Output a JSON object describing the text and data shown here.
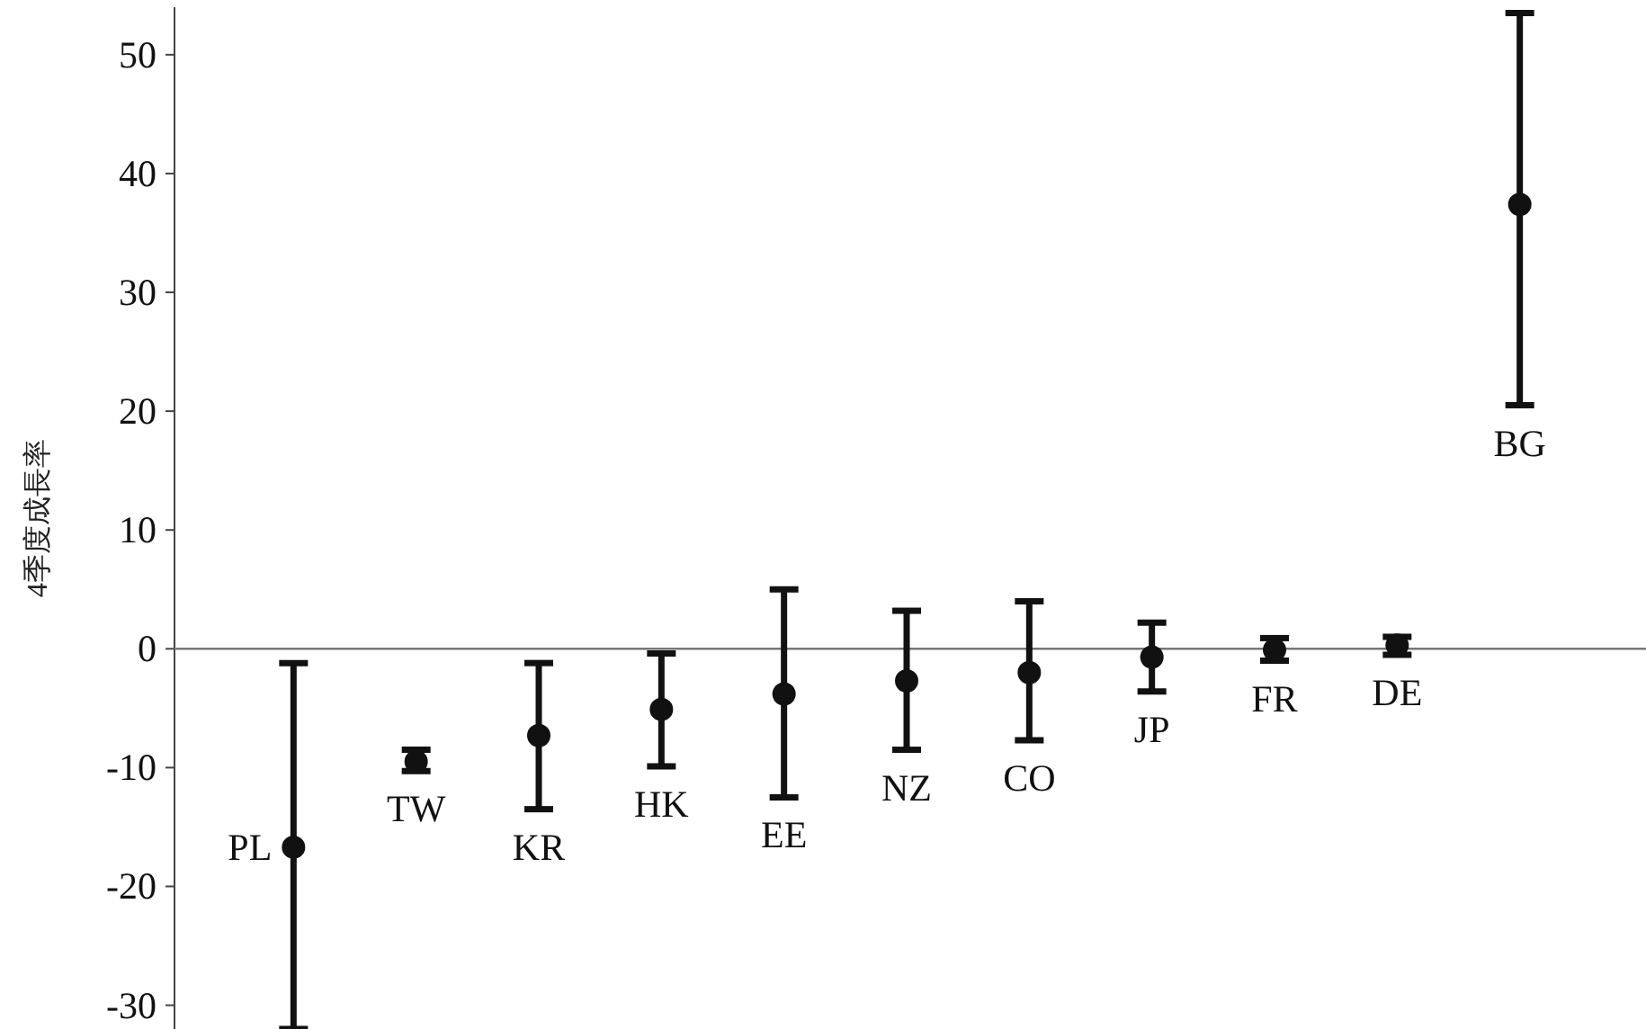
{
  "chart_data": {
    "type": "scatter",
    "ylabel": "4季度成長率",
    "categories": [
      "PL",
      "TW",
      "KR",
      "HK",
      "EE",
      "NZ",
      "CO",
      "JP",
      "FR",
      "DE",
      "BG"
    ],
    "series": [
      {
        "color": "#111111",
        "values": [
          -16.7,
          -9.5,
          -7.3,
          -5.1,
          -3.8,
          -2.7,
          -2.0,
          -0.7,
          -0.1,
          0.3,
          37.4
        ],
        "errors": [
          [
            -32,
            -1.2
          ],
          [
            -10.3,
            -8.5
          ],
          [
            -13.5,
            -1.2
          ],
          [
            -9.9,
            -0.4
          ],
          [
            -12.5,
            5.0
          ],
          [
            -8.5,
            3.2
          ],
          [
            -7.7,
            4.0
          ],
          [
            -3.6,
            2.2
          ],
          [
            -1.0,
            0.9
          ],
          [
            -0.5,
            1.0
          ],
          [
            20.5,
            53.5
          ]
        ]
      }
    ],
    "marker": "circle",
    "ylim": [
      -32,
      54
    ],
    "yticks": [
      -30,
      -20,
      -10,
      0,
      10,
      20,
      30,
      40,
      50
    ],
    "ref_lines": [
      {
        "axis": "y",
        "value": 0,
        "color": "#777777"
      }
    ]
  }
}
